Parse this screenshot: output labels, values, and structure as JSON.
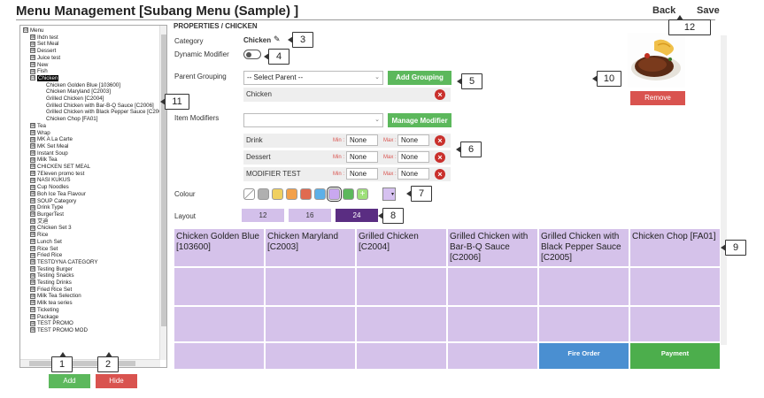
{
  "header": {
    "title": "Menu Management  [Subang Menu (Sample) ]",
    "back": "Back",
    "save": "Save"
  },
  "tree": {
    "nodes": [
      {
        "label": "Menu",
        "level": 0,
        "exp": "⊟"
      },
      {
        "label": "Ihdn test",
        "level": 1,
        "exp": "⊞"
      },
      {
        "label": "Set Meal",
        "level": 1,
        "exp": "⊞"
      },
      {
        "label": "Dessert",
        "level": 1,
        "exp": "⊞"
      },
      {
        "label": "Juice test",
        "level": 1,
        "exp": "⊞"
      },
      {
        "label": "New",
        "level": 1,
        "exp": "⊞"
      },
      {
        "label": "Fish",
        "level": 1,
        "exp": "⊞"
      },
      {
        "label": "Chicken",
        "level": 1,
        "exp": "⊟",
        "selected": true
      },
      {
        "label": "Chicken Golden Blue [103600]",
        "level": 2
      },
      {
        "label": "Chicken Maryland [C2003]",
        "level": 2
      },
      {
        "label": "Grilled Chicken [C2004]",
        "level": 2
      },
      {
        "label": "Grilled Chicken with Bar-B-Q Sauce [C2006]",
        "level": 2
      },
      {
        "label": "Grilled Chicken with Black Pepper Sauce [C200",
        "level": 2
      },
      {
        "label": "Chicken Chop [FA01]",
        "level": 2
      },
      {
        "label": "Tea",
        "level": 1,
        "exp": "⊞"
      },
      {
        "label": "Wrap",
        "level": 1,
        "exp": "⊞"
      },
      {
        "label": "MK A La Carte",
        "level": 1,
        "exp": "⊞"
      },
      {
        "label": "MK Set Meal",
        "level": 1,
        "exp": "⊞"
      },
      {
        "label": "Instant Soup",
        "level": 1,
        "exp": "⊞"
      },
      {
        "label": "Milk Tea",
        "level": 1,
        "exp": "⊞"
      },
      {
        "label": "CHICKEN SET MEAL",
        "level": 1,
        "exp": "⊞"
      },
      {
        "label": "7Eleven promo test",
        "level": 1,
        "exp": "⊞"
      },
      {
        "label": "NASI KUKUS",
        "level": 1,
        "exp": "⊞"
      },
      {
        "label": "Cup Noodles",
        "level": 1,
        "exp": "⊞"
      },
      {
        "label": "Boh Ice Tea Flavour",
        "level": 1,
        "exp": "⊞"
      },
      {
        "label": "SOUP Category",
        "level": 1,
        "exp": "⊞"
      },
      {
        "label": "Drink Type",
        "level": 1,
        "exp": "⊞"
      },
      {
        "label": "BurgerTest",
        "level": 1,
        "exp": "⊞"
      },
      {
        "label": "艾迪",
        "level": 1,
        "exp": "⊞"
      },
      {
        "label": "Chicken Set 3",
        "level": 1,
        "exp": "⊞"
      },
      {
        "label": "Rice",
        "level": 1,
        "exp": "⊞"
      },
      {
        "label": "Lunch Set",
        "level": 1,
        "exp": "⊞"
      },
      {
        "label": "Rice Set",
        "level": 1,
        "exp": "⊞"
      },
      {
        "label": "Fried Rice",
        "level": 1,
        "exp": "⊞"
      },
      {
        "label": "TESTDYNA CATEGORY",
        "level": 1,
        "exp": "⊞"
      },
      {
        "label": "Testing Burger",
        "level": 1,
        "exp": "⊞"
      },
      {
        "label": "Testing Snacks",
        "level": 1,
        "exp": "⊞"
      },
      {
        "label": "Testing Drinks",
        "level": 1,
        "exp": "⊞"
      },
      {
        "label": "Fried Rice Set",
        "level": 1,
        "exp": "⊞"
      },
      {
        "label": "Milk Tea Selection",
        "level": 1,
        "exp": "⊞"
      },
      {
        "label": "Milk tea series",
        "level": 1,
        "exp": "⊞"
      },
      {
        "label": "Ticketing",
        "level": 1,
        "exp": "⊞"
      },
      {
        "label": "Package",
        "level": 1,
        "exp": "⊞"
      },
      {
        "label": "TEST PROMO",
        "level": 1,
        "exp": "⊞"
      },
      {
        "label": "TEST PROMO MOD",
        "level": 1,
        "exp": "⊞"
      }
    ],
    "add": "Add",
    "hide": "Hide"
  },
  "props": {
    "title": "PROPERTIES / CHICKEN",
    "category_label": "Category",
    "category_value": "Chicken",
    "dynamic_label": "Dynamic Modifier",
    "parent_label": "Parent Grouping",
    "parent_select": "-- Select Parent --",
    "add_grouping": "Add Grouping",
    "parent_item": "Chicken",
    "item_modifiers_label": "Item Modifiers",
    "manage_modifier": "Manage Modifier",
    "modifiers": [
      {
        "name": "Drink",
        "min_label": "Min :",
        "min": "None",
        "max_label": "Max :",
        "max": "None"
      },
      {
        "name": "Dessert",
        "min_label": "Min :",
        "min": "None",
        "max_label": "Max :",
        "max": "None"
      },
      {
        "name": "MODIFIER TEST",
        "min_label": "Min :",
        "min": "None",
        "max_label": "Max :",
        "max": "None"
      }
    ],
    "colour_label": "Colour",
    "swatches": [
      "#ffffff",
      "#b0b0b0",
      "#f0d060",
      "#f3a04a",
      "#e06a50",
      "#5db0e8",
      "#c9a8f0",
      "#5cb85c",
      "#9ee07a"
    ],
    "layout_label": "Layout",
    "layouts": [
      "12",
      "16",
      "24"
    ],
    "remove": "Remove"
  },
  "grid": {
    "items": [
      "Chicken Golden Blue [103600]",
      "Chicken Maryland [C2003]",
      "Grilled Chicken [C2004]",
      "Grilled Chicken with Bar-B-Q Sauce [C2006]",
      "Grilled Chicken with Black Pepper Sauce [C2005]",
      "Chicken Chop [FA01]"
    ],
    "fire_order": "Fire Order",
    "payment": "Payment"
  },
  "callouts": [
    "1",
    "2",
    "3",
    "4",
    "5",
    "6",
    "7",
    "8",
    "9",
    "10",
    "11",
    "12"
  ]
}
